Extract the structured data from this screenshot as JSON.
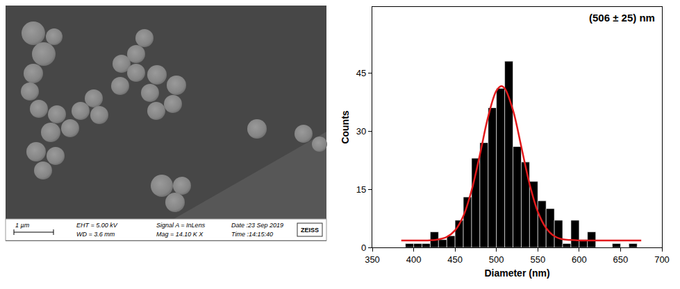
{
  "chart_data": {
    "type": "histogram",
    "x_label": "Diameter (nm)",
    "y_label": "Counts",
    "annotations": [
      "(506 ± 25) nm"
    ],
    "bins": [
      390,
      400,
      410,
      420,
      430,
      440,
      450,
      460,
      470,
      480,
      490,
      500,
      510,
      520,
      530,
      540,
      550,
      560,
      570,
      580,
      590,
      600,
      610,
      620,
      630,
      640,
      650,
      660,
      670
    ],
    "values": [
      1,
      1,
      1,
      4,
      2,
      3,
      7,
      13,
      23,
      27,
      36,
      41,
      48,
      26,
      22,
      17,
      12,
      10,
      7,
      1,
      7,
      2,
      4,
      0,
      0,
      1,
      0,
      1
    ],
    "color": "#000000",
    "fit": {
      "type": "line",
      "color": "#e31a1c",
      "x": [
        385,
        400,
        410,
        420,
        430,
        440,
        450,
        460,
        470,
        480,
        490,
        500,
        506,
        510,
        520,
        530,
        540,
        550,
        560,
        570,
        580,
        590,
        600,
        620,
        640,
        660,
        675
      ],
      "values": [
        1.8,
        1.8,
        1.8,
        1.85,
        2.07,
        2.7,
        4.4,
        8.1,
        14.7,
        23.9,
        33.7,
        40.4,
        41.6,
        41.0,
        35.4,
        26.0,
        16.4,
        9.2,
        5.0,
        2.9,
        2.1,
        1.9,
        1.8,
        1.8,
        1.8,
        1.8,
        1.8
      ]
    },
    "xlim": [
      350,
      700
    ],
    "xticks": [
      350,
      400,
      450,
      500,
      550,
      600,
      650,
      700
    ],
    "ylim": [
      0,
      62
    ],
    "yticks": [
      0,
      15,
      30,
      45
    ],
    "grid": false
  },
  "micrograph": {
    "scale_bar": "1 µm",
    "info": [
      "EHT = 5.00 kV",
      "WD = 3.6 mm",
      "Signal A = InLens",
      "Mag = 14.10 K X",
      "Date :23 Sep 2019",
      "Time :14:15:40"
    ],
    "logo": "ZEISS"
  }
}
